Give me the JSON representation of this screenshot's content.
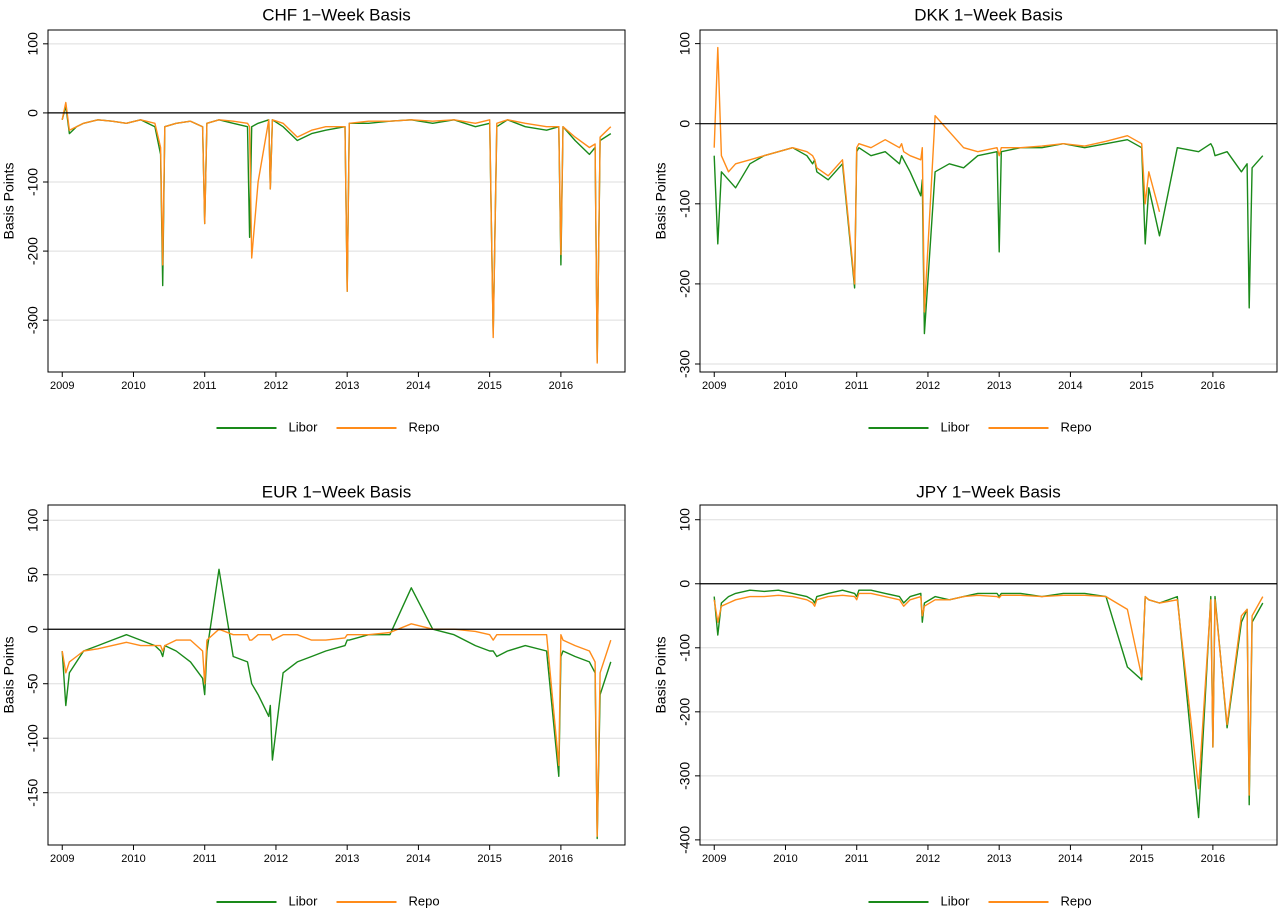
{
  "chart_data": [
    {
      "type": "line",
      "title": "CHF 1−Week Basis",
      "ylabel": "Basis Points",
      "x": [
        2009.0,
        2009.05,
        2009.1,
        2009.2,
        2009.3,
        2009.5,
        2009.7,
        2009.9,
        2010.1,
        2010.3,
        2010.38,
        2010.41,
        2010.44,
        2010.6,
        2010.8,
        2010.97,
        2011.0,
        2011.03,
        2011.2,
        2011.4,
        2011.6,
        2011.63,
        2011.66,
        2011.75,
        2011.9,
        2011.92,
        2011.95,
        2012.1,
        2012.3,
        2012.5,
        2012.7,
        2012.97,
        2013.0,
        2013.03,
        2013.3,
        2013.6,
        2013.9,
        2014.2,
        2014.5,
        2014.8,
        2015.0,
        2015.05,
        2015.1,
        2015.25,
        2015.5,
        2015.8,
        2015.97,
        2016.0,
        2016.03,
        2016.2,
        2016.4,
        2016.48,
        2016.51,
        2016.55,
        2016.7
      ],
      "series": [
        {
          "name": "Libor",
          "color": "#1a8a1a",
          "values": [
            -10,
            10,
            -30,
            -20,
            -15,
            -10,
            -12,
            -15,
            -10,
            -20,
            -60,
            -250,
            -20,
            -15,
            -12,
            -20,
            -160,
            -15,
            -10,
            -15,
            -20,
            -180,
            -20,
            -15,
            -10,
            -110,
            -10,
            -20,
            -40,
            -30,
            -25,
            -20,
            -258,
            -15,
            -15,
            -12,
            -10,
            -15,
            -10,
            -20,
            -15,
            -320,
            -20,
            -10,
            -20,
            -25,
            -20,
            -220,
            -20,
            -40,
            -60,
            -50,
            -360,
            -40,
            -30
          ]
        },
        {
          "name": "Repo",
          "color": "#ff8c1a",
          "values": [
            -10,
            15,
            -25,
            -20,
            -15,
            -10,
            -12,
            -15,
            -10,
            -15,
            -50,
            -220,
            -20,
            -15,
            -12,
            -20,
            -160,
            -15,
            -10,
            -12,
            -15,
            -20,
            -210,
            -100,
            -10,
            -110,
            -10,
            -15,
            -35,
            -25,
            -20,
            -20,
            -258,
            -15,
            -12,
            -12,
            -10,
            -12,
            -10,
            -15,
            -10,
            -325,
            -15,
            -10,
            -15,
            -20,
            -20,
            -205,
            -20,
            -35,
            -50,
            -45,
            -362,
            -35,
            -20
          ]
        }
      ],
      "xlim": [
        2008.8,
        2016.9
      ],
      "xticks": [
        2009,
        2010,
        2011,
        2012,
        2013,
        2014,
        2015,
        2016
      ],
      "ylim": [
        -375,
        120
      ],
      "yticks": [
        -300,
        -200,
        -100,
        0,
        100
      ],
      "grid": true,
      "hline": 0
    },
    {
      "type": "line",
      "title": "DKK 1−Week Basis",
      "ylabel": "Basis Points",
      "x": [
        2009.0,
        2009.05,
        2009.1,
        2009.2,
        2009.3,
        2009.5,
        2009.7,
        2009.9,
        2010.1,
        2010.3,
        2010.38,
        2010.41,
        2010.44,
        2010.6,
        2010.8,
        2010.97,
        2011.0,
        2011.03,
        2011.2,
        2011.4,
        2011.6,
        2011.63,
        2011.66,
        2011.75,
        2011.9,
        2011.92,
        2011.95,
        2012.1,
        2012.3,
        2012.5,
        2012.7,
        2012.97,
        2013.0,
        2013.03,
        2013.3,
        2013.6,
        2013.9,
        2014.2,
        2014.5,
        2014.8,
        2015.0,
        2015.05,
        2015.1,
        2015.25,
        2015.5,
        2015.8,
        2015.97,
        2016.0,
        2016.03,
        2016.2,
        2016.4,
        2016.48,
        2016.51,
        2016.55,
        2016.7
      ],
      "series": [
        {
          "name": "Libor",
          "color": "#1a8a1a",
          "values": [
            -40,
            -150,
            -60,
            -70,
            -80,
            -50,
            -40,
            -35,
            -30,
            -40,
            -50,
            -45,
            -60,
            -70,
            -50,
            -205,
            -35,
            -30,
            -40,
            -35,
            -50,
            -40,
            -45,
            -60,
            -90,
            -70,
            -262,
            -60,
            -50,
            -55,
            -40,
            -35,
            -160,
            -35,
            -30,
            -30,
            -25,
            -30,
            -25,
            -20,
            -30,
            -150,
            -80,
            -140,
            -30,
            -35,
            -25,
            -30,
            -40,
            -35,
            -60,
            -50,
            -230,
            -55,
            -40
          ]
        },
        {
          "name": "Repo",
          "color": "#ff8c1a",
          "values": [
            -30,
            95,
            -40,
            -60,
            -50,
            -45,
            -40,
            -35,
            -30,
            -35,
            -40,
            -45,
            -55,
            -65,
            -45,
            -200,
            -30,
            -25,
            -30,
            -20,
            -30,
            -25,
            -35,
            -40,
            -45,
            -30,
            -235,
            10,
            -10,
            -30,
            -35,
            -30,
            -40,
            -30,
            -30,
            -28,
            -25,
            -28,
            -22,
            -15,
            -25,
            -100,
            -60,
            -110,
            null,
            null,
            null,
            null,
            null,
            null,
            null,
            null,
            null,
            null,
            null
          ]
        }
      ],
      "xlim": [
        2008.8,
        2016.9
      ],
      "xticks": [
        2009,
        2010,
        2011,
        2012,
        2013,
        2014,
        2015,
        2016
      ],
      "ylim": [
        -310,
        117
      ],
      "yticks": [
        -300,
        -200,
        -100,
        0,
        100
      ],
      "grid": true,
      "hline": 0
    },
    {
      "type": "line",
      "title": "EUR 1−Week Basis",
      "ylabel": "Basis Points",
      "x": [
        2009.0,
        2009.05,
        2009.1,
        2009.2,
        2009.3,
        2009.5,
        2009.7,
        2009.9,
        2010.1,
        2010.3,
        2010.38,
        2010.41,
        2010.44,
        2010.6,
        2010.8,
        2010.97,
        2011.0,
        2011.03,
        2011.2,
        2011.4,
        2011.6,
        2011.63,
        2011.66,
        2011.75,
        2011.9,
        2011.92,
        2011.95,
        2012.1,
        2012.3,
        2012.5,
        2012.7,
        2012.97,
        2013.0,
        2013.03,
        2013.3,
        2013.6,
        2013.9,
        2014.2,
        2014.5,
        2014.8,
        2015.0,
        2015.05,
        2015.1,
        2015.25,
        2015.5,
        2015.8,
        2015.97,
        2016.0,
        2016.03,
        2016.2,
        2016.4,
        2016.48,
        2016.51,
        2016.55,
        2016.7
      ],
      "series": [
        {
          "name": "Libor",
          "color": "#1a8a1a",
          "values": [
            -20,
            -70,
            -40,
            -30,
            -20,
            -15,
            -10,
            -5,
            -10,
            -15,
            -20,
            -25,
            -15,
            -20,
            -30,
            -45,
            -60,
            -20,
            55,
            -25,
            -30,
            -40,
            -50,
            -60,
            -80,
            -70,
            -120,
            -40,
            -30,
            -25,
            -20,
            -15,
            -10,
            -10,
            -5,
            -5,
            38,
            0,
            -5,
            -15,
            -20,
            -20,
            -25,
            -20,
            -15,
            -20,
            -135,
            -25,
            -20,
            -25,
            -30,
            -40,
            -192,
            -60,
            -30
          ]
        },
        {
          "name": "Repo",
          "color": "#ff8c1a",
          "values": [
            -20,
            -40,
            -30,
            -25,
            -20,
            -18,
            -15,
            -12,
            -15,
            -15,
            -15,
            -20,
            -15,
            -10,
            -10,
            -20,
            -50,
            -10,
            0,
            -5,
            -5,
            -10,
            -10,
            -5,
            -5,
            -5,
            -10,
            -5,
            -5,
            -10,
            -10,
            -8,
            -5,
            -5,
            -5,
            -3,
            5,
            0,
            0,
            -2,
            -5,
            -10,
            -5,
            -5,
            -5,
            -5,
            -125,
            -5,
            -10,
            -15,
            -20,
            -30,
            -190,
            -40,
            -10
          ]
        }
      ],
      "xlim": [
        2008.8,
        2016.9
      ],
      "xticks": [
        2009,
        2010,
        2011,
        2012,
        2013,
        2014,
        2015,
        2016
      ],
      "ylim": [
        -198,
        114
      ],
      "yticks": [
        -150,
        -100,
        -50,
        0,
        50,
        100
      ],
      "grid": true,
      "hline": 0
    },
    {
      "type": "line",
      "title": "JPY 1−Week Basis",
      "ylabel": "Basis Points",
      "x": [
        2009.0,
        2009.05,
        2009.1,
        2009.2,
        2009.3,
        2009.5,
        2009.7,
        2009.9,
        2010.1,
        2010.3,
        2010.38,
        2010.41,
        2010.44,
        2010.6,
        2010.8,
        2010.97,
        2011.0,
        2011.03,
        2011.2,
        2011.4,
        2011.6,
        2011.63,
        2011.66,
        2011.75,
        2011.9,
        2011.92,
        2011.95,
        2012.1,
        2012.3,
        2012.5,
        2012.7,
        2012.97,
        2013.0,
        2013.03,
        2013.3,
        2013.6,
        2013.9,
        2014.2,
        2014.5,
        2014.8,
        2015.0,
        2015.05,
        2015.1,
        2015.25,
        2015.5,
        2015.8,
        2015.97,
        2016.0,
        2016.03,
        2016.2,
        2016.4,
        2016.48,
        2016.51,
        2016.55,
        2016.7
      ],
      "series": [
        {
          "name": "Libor",
          "color": "#1a8a1a",
          "values": [
            -20,
            -80,
            -30,
            -20,
            -15,
            -10,
            -12,
            -10,
            -15,
            -20,
            -25,
            -30,
            -20,
            -15,
            -10,
            -15,
            -20,
            -10,
            -10,
            -15,
            -20,
            -25,
            -30,
            -20,
            -15,
            -60,
            -30,
            -20,
            -25,
            -20,
            -15,
            -15,
            -20,
            -15,
            -15,
            -20,
            -15,
            -15,
            -20,
            -130,
            -150,
            -20,
            -25,
            -30,
            -20,
            -365,
            -20,
            -255,
            -20,
            -225,
            -60,
            -40,
            -345,
            -60,
            -30
          ]
        },
        {
          "name": "Repo",
          "color": "#ff8c1a",
          "values": [
            -25,
            -60,
            -35,
            -30,
            -25,
            -20,
            -20,
            -18,
            -20,
            -25,
            -30,
            -35,
            -25,
            -20,
            -18,
            -20,
            -25,
            -15,
            -15,
            -20,
            -25,
            -30,
            -35,
            -25,
            -20,
            -50,
            -35,
            -25,
            -25,
            -20,
            -18,
            -20,
            -22,
            -18,
            -18,
            -20,
            -18,
            -18,
            -20,
            -40,
            -145,
            -20,
            -25,
            -30,
            -25,
            -320,
            -25,
            -255,
            -25,
            -220,
            -50,
            -40,
            -330,
            -50,
            -20
          ]
        }
      ],
      "xlim": [
        2008.8,
        2016.9
      ],
      "xticks": [
        2009,
        2010,
        2011,
        2012,
        2013,
        2014,
        2015,
        2016
      ],
      "ylim": [
        -408,
        123
      ],
      "yticks": [
        -400,
        -300,
        -200,
        -100,
        0,
        100
      ],
      "grid": true,
      "hline": 0
    }
  ]
}
